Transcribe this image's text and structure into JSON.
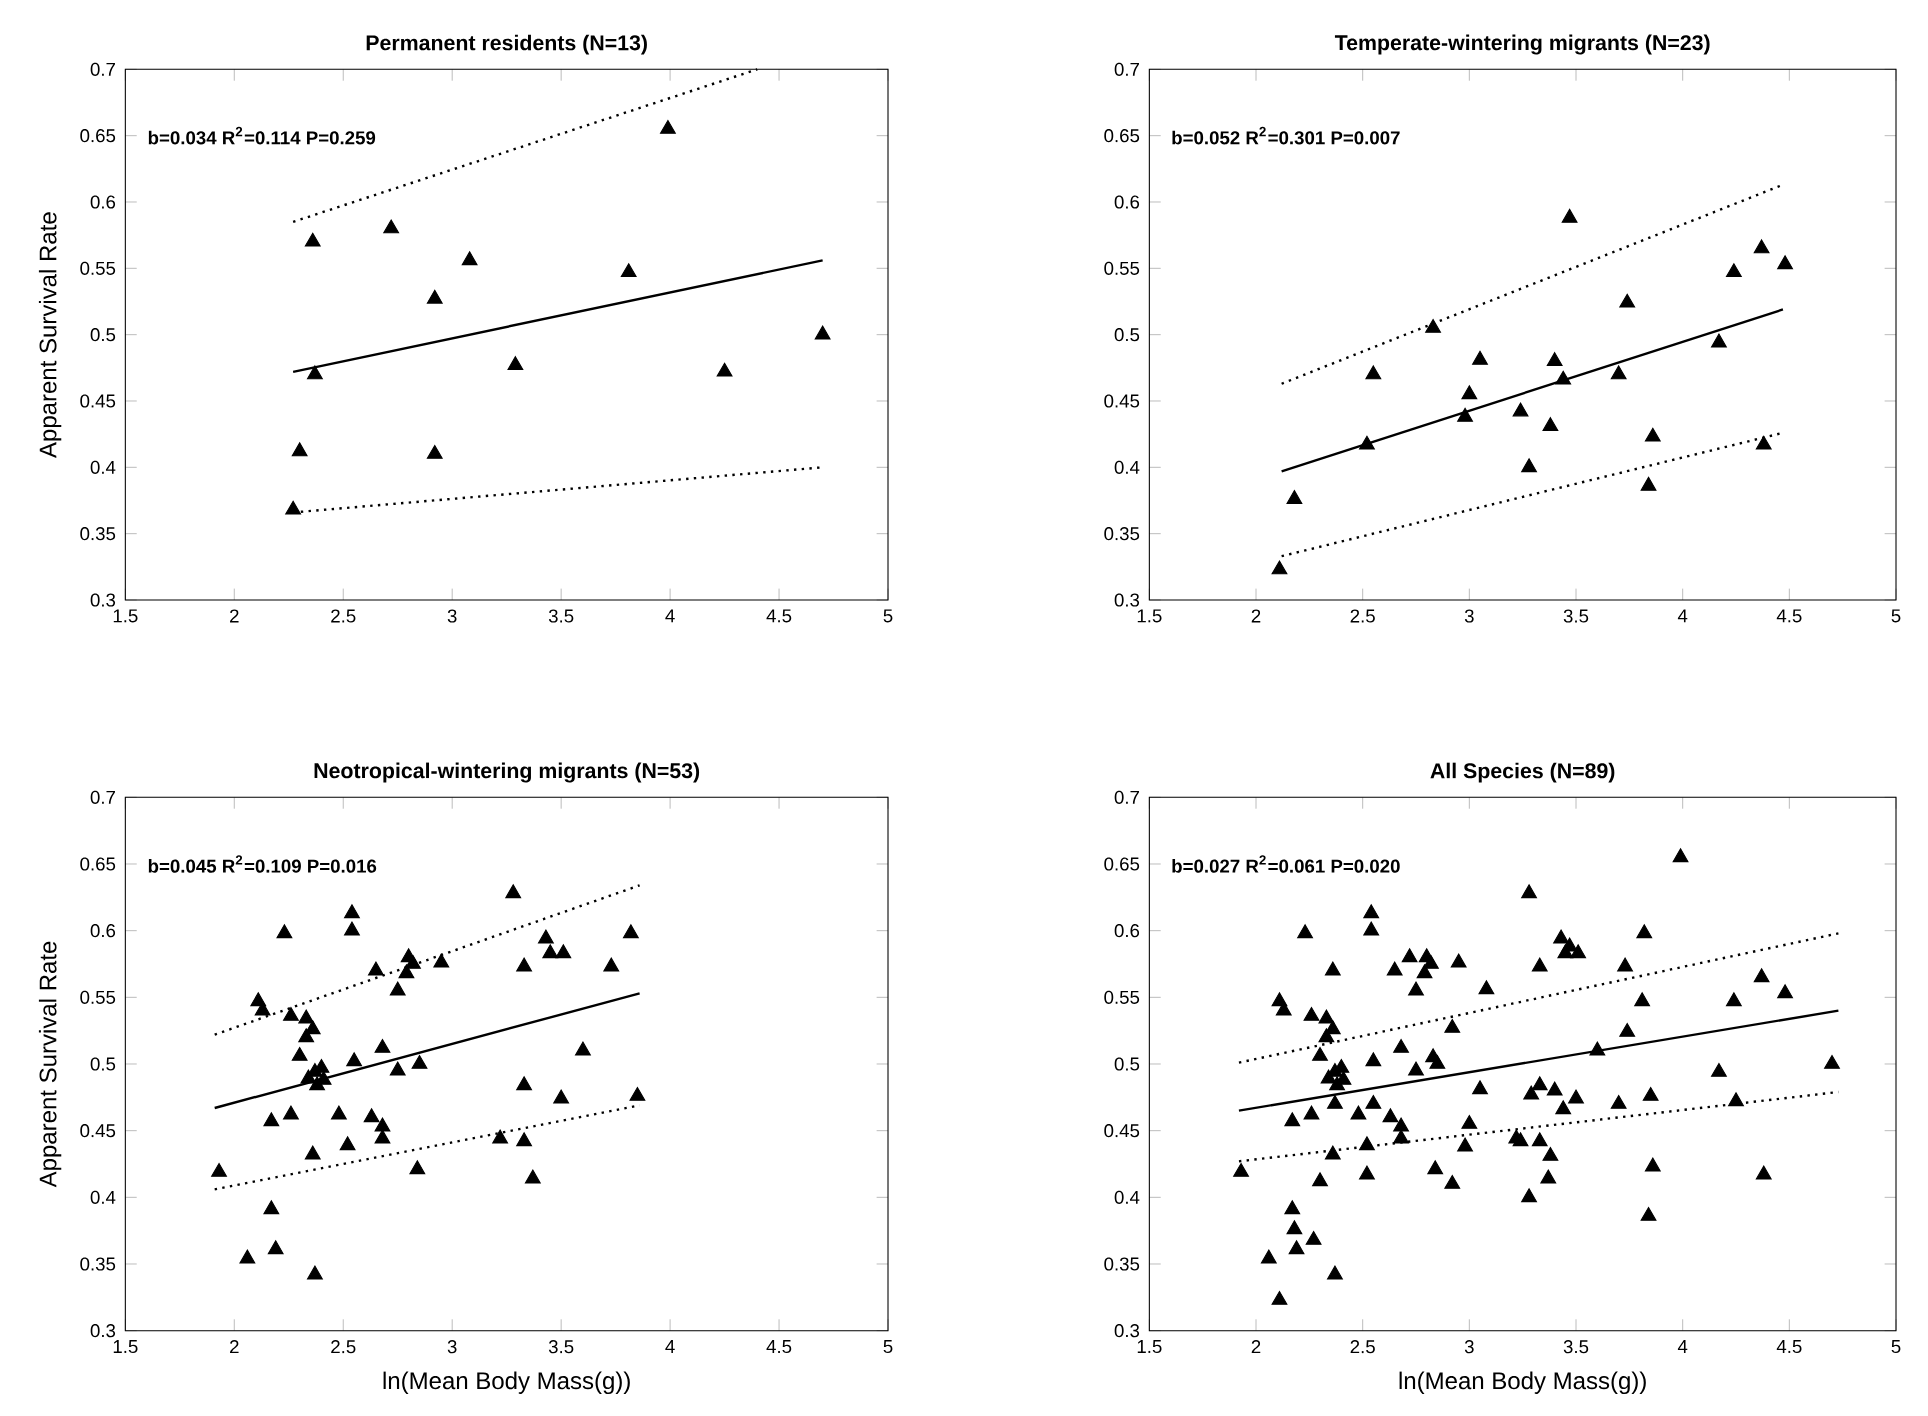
{
  "chart_data": [
    {
      "type": "scatter",
      "title": "Permanent residents (N=13)",
      "ylabel": "Apparent Survival Rate",
      "annotations": [
        "b=0.034 R$^{2}$=0.114 P=0.259"
      ],
      "xlim": [
        1.5,
        5
      ],
      "ylim": [
        0.3,
        0.7
      ],
      "xticks": [
        1.5,
        2,
        2.5,
        3,
        3.5,
        4,
        4.5,
        5
      ],
      "yticks": [
        0.3,
        0.35,
        0.4,
        0.45,
        0.5,
        0.55,
        0.6,
        0.65,
        0.7
      ],
      "series": [
        {
          "marker": "triangle",
          "color": "#000000",
          "x": [
            2.36,
            2.72,
            3.08,
            2.92,
            3.81,
            3.99,
            2.37,
            3.29,
            4.25,
            4.7,
            2.3,
            2.92,
            2.27
          ],
          "values": [
            0.57,
            0.58,
            0.556,
            0.527,
            0.547,
            0.655,
            0.47,
            0.477,
            0.472,
            0.5,
            0.412,
            0.41,
            0.368
          ]
        },
        {
          "type": "line",
          "color": "#000000",
          "line_style": "solid",
          "x": [
            2.27,
            4.7
          ],
          "values": [
            0.472,
            0.556
          ]
        },
        {
          "type": "line",
          "color": "#000000",
          "line_style": "dotted",
          "x": [
            2.27,
            4.4
          ],
          "values": [
            0.585,
            0.7
          ]
        },
        {
          "type": "line",
          "color": "#000000",
          "line_style": "dotted",
          "x": [
            2.27,
            4.7
          ],
          "values": [
            0.366,
            0.4
          ]
        }
      ]
    },
    {
      "type": "scatter",
      "title": "Temperate-wintering migrants (N=23)",
      "annotations": [
        "b=0.052 R$^{2}$=0.301 P=0.007"
      ],
      "xlim": [
        1.5,
        5
      ],
      "ylim": [
        0.3,
        0.7
      ],
      "xticks": [
        1.5,
        2,
        2.5,
        3,
        3.5,
        4,
        4.5,
        5
      ],
      "yticks": [
        0.3,
        0.35,
        0.4,
        0.45,
        0.5,
        0.55,
        0.6,
        0.65,
        0.7
      ],
      "series": [
        {
          "marker": "triangle",
          "color": "#000000",
          "x": [
            3.47,
            4.37,
            4.48,
            4.24,
            3.74,
            2.83,
            4.17,
            3.05,
            3.4,
            2.55,
            3.44,
            3.7,
            3.0,
            2.98,
            3.24,
            3.38,
            2.52,
            3.86,
            4.38,
            3.28,
            3.84,
            2.18,
            2.11
          ],
          "values": [
            0.588,
            0.565,
            0.553,
            0.547,
            0.524,
            0.505,
            0.494,
            0.481,
            0.48,
            0.47,
            0.466,
            0.47,
            0.455,
            0.438,
            0.442,
            0.431,
            0.417,
            0.423,
            0.417,
            0.4,
            0.386,
            0.376,
            0.323
          ]
        },
        {
          "type": "line",
          "color": "#000000",
          "line_style": "solid",
          "x": [
            2.12,
            4.47
          ],
          "values": [
            0.397,
            0.519
          ]
        },
        {
          "type": "line",
          "color": "#000000",
          "line_style": "dotted",
          "x": [
            2.12,
            4.47
          ],
          "values": [
            0.463,
            0.613
          ]
        },
        {
          "type": "line",
          "color": "#000000",
          "line_style": "dotted",
          "x": [
            2.12,
            4.47
          ],
          "values": [
            0.333,
            0.426
          ]
        }
      ]
    },
    {
      "type": "scatter",
      "title": "Neotropical-wintering migrants (N=53)",
      "xlabel": "ln(Mean Body Mass(g))",
      "ylabel": "Apparent Survival Rate",
      "annotations": [
        "b=0.045 R$^{2}$=0.109 P=0.016"
      ],
      "xlim": [
        1.5,
        5
      ],
      "ylim": [
        0.3,
        0.7
      ],
      "xticks": [
        1.5,
        2,
        2.5,
        3,
        3.5,
        4,
        4.5,
        5
      ],
      "yticks": [
        0.3,
        0.35,
        0.4,
        0.45,
        0.5,
        0.55,
        0.6,
        0.65,
        0.7
      ],
      "series": [
        {
          "marker": "triangle",
          "color": "#000000",
          "x": [
            3.28,
            2.54,
            2.54,
            2.23,
            3.82,
            3.43,
            3.45,
            3.51,
            2.95,
            2.8,
            2.65,
            2.79,
            3.33,
            3.73,
            2.75,
            2.11,
            2.13,
            2.26,
            2.33,
            2.33,
            2.68,
            3.6,
            2.3,
            2.55,
            2.85,
            2.75,
            2.37,
            2.34,
            2.41,
            3.33,
            3.5,
            3.85,
            2.26,
            2.17,
            2.48,
            2.63,
            2.68,
            2.68,
            3.22,
            3.33,
            2.52,
            2.36,
            2.84,
            3.37,
            1.93,
            2.17,
            2.19,
            2.06,
            2.37,
            2.36,
            2.4,
            2.38,
            2.82
          ],
          "values": [
            0.628,
            0.613,
            0.6,
            0.598,
            0.598,
            0.594,
            0.583,
            0.583,
            0.576,
            0.58,
            0.57,
            0.568,
            0.573,
            0.573,
            0.555,
            0.547,
            0.54,
            0.536,
            0.534,
            0.52,
            0.512,
            0.51,
            0.506,
            0.502,
            0.5,
            0.495,
            0.494,
            0.489,
            0.488,
            0.484,
            0.474,
            0.476,
            0.462,
            0.457,
            0.462,
            0.46,
            0.453,
            0.444,
            0.444,
            0.442,
            0.439,
            0.432,
            0.421,
            0.414,
            0.419,
            0.391,
            0.361,
            0.354,
            0.342,
            0.526,
            0.497,
            0.484,
            0.575
          ]
        },
        {
          "type": "line",
          "color": "#000000",
          "line_style": "solid",
          "x": [
            1.91,
            3.86
          ],
          "values": [
            0.467,
            0.553
          ]
        },
        {
          "type": "line",
          "color": "#000000",
          "line_style": "dotted",
          "x": [
            1.91,
            3.86
          ],
          "values": [
            0.522,
            0.634
          ]
        },
        {
          "type": "line",
          "color": "#000000",
          "line_style": "dotted",
          "x": [
            1.91,
            3.86
          ],
          "values": [
            0.406,
            0.469
          ]
        }
      ]
    },
    {
      "type": "scatter",
      "title": "All Species (N=89)",
      "xlabel": "ln(Mean Body Mass(g))",
      "annotations": [
        "b=0.027 R$^{2}$=0.061 P=0.020"
      ],
      "xlim": [
        1.5,
        5
      ],
      "ylim": [
        0.3,
        0.7
      ],
      "xticks": [
        1.5,
        2,
        2.5,
        3,
        3.5,
        4,
        4.5,
        5
      ],
      "yticks": [
        0.3,
        0.35,
        0.4,
        0.45,
        0.5,
        0.55,
        0.6,
        0.65,
        0.7
      ],
      "series": [
        {
          "marker": "triangle",
          "color": "#000000",
          "x": [
            2.36,
            2.72,
            3.08,
            2.92,
            3.81,
            3.99,
            2.37,
            3.29,
            4.25,
            4.7,
            2.3,
            2.92,
            2.27,
            3.47,
            4.37,
            4.48,
            4.24,
            3.74,
            2.83,
            4.17,
            3.05,
            3.4,
            2.55,
            3.44,
            3.7,
            3.0,
            2.98,
            3.24,
            3.38,
            2.52,
            3.86,
            4.38,
            3.28,
            3.84,
            2.18,
            2.11,
            3.28,
            2.54,
            2.54,
            2.23,
            3.82,
            3.43,
            3.45,
            3.51,
            2.95,
            2.8,
            2.65,
            2.79,
            3.33,
            3.73,
            2.75,
            2.11,
            2.13,
            2.26,
            2.33,
            2.33,
            2.68,
            3.6,
            2.3,
            2.55,
            2.85,
            2.75,
            2.37,
            2.34,
            2.41,
            3.33,
            3.5,
            3.85,
            2.26,
            2.17,
            2.48,
            2.63,
            2.68,
            2.68,
            3.22,
            3.33,
            2.52,
            2.36,
            2.84,
            3.37,
            1.93,
            2.17,
            2.19,
            2.06,
            2.37,
            2.36,
            2.4,
            2.38,
            2.82
          ],
          "values": [
            0.57,
            0.58,
            0.556,
            0.527,
            0.547,
            0.655,
            0.47,
            0.477,
            0.472,
            0.5,
            0.412,
            0.41,
            0.368,
            0.588,
            0.565,
            0.553,
            0.547,
            0.524,
            0.505,
            0.494,
            0.481,
            0.48,
            0.47,
            0.466,
            0.47,
            0.455,
            0.438,
            0.442,
            0.431,
            0.417,
            0.423,
            0.417,
            0.4,
            0.386,
            0.376,
            0.323,
            0.628,
            0.613,
            0.6,
            0.598,
            0.598,
            0.594,
            0.583,
            0.583,
            0.576,
            0.58,
            0.57,
            0.568,
            0.573,
            0.573,
            0.555,
            0.547,
            0.54,
            0.536,
            0.534,
            0.52,
            0.512,
            0.51,
            0.506,
            0.502,
            0.5,
            0.495,
            0.494,
            0.489,
            0.488,
            0.484,
            0.474,
            0.476,
            0.462,
            0.457,
            0.462,
            0.46,
            0.453,
            0.444,
            0.444,
            0.442,
            0.439,
            0.432,
            0.421,
            0.414,
            0.419,
            0.391,
            0.361,
            0.354,
            0.342,
            0.526,
            0.497,
            0.484,
            0.575
          ]
        },
        {
          "type": "line",
          "color": "#000000",
          "line_style": "solid",
          "x": [
            1.92,
            4.73
          ],
          "values": [
            0.465,
            0.54
          ]
        },
        {
          "type": "line",
          "color": "#000000",
          "line_style": "dotted",
          "x": [
            1.92,
            4.73
          ],
          "values": [
            0.501,
            0.598
          ]
        },
        {
          "type": "line",
          "color": "#000000",
          "line_style": "dotted",
          "x": [
            1.92,
            4.73
          ],
          "values": [
            0.427,
            0.479
          ]
        }
      ]
    }
  ]
}
